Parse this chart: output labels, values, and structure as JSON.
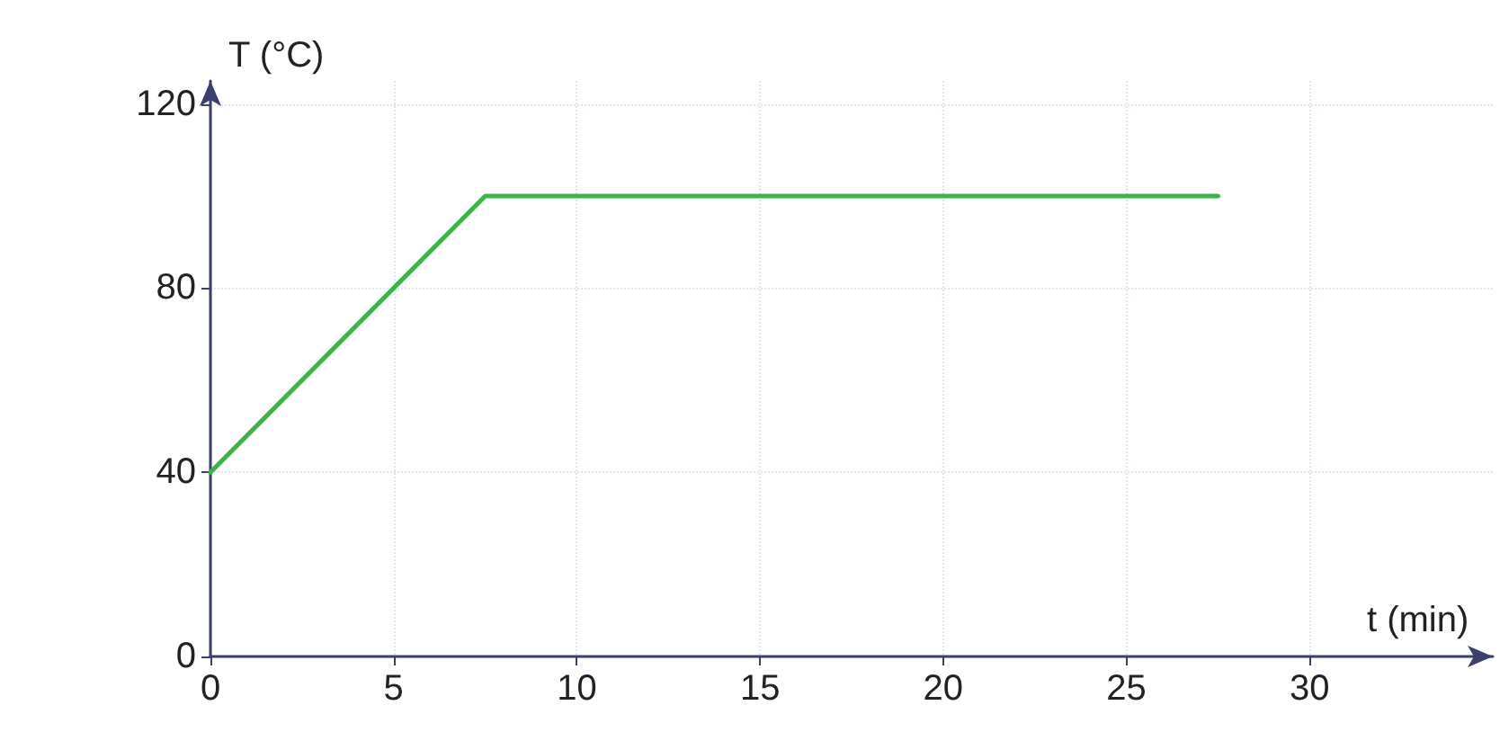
{
  "chart_data": {
    "type": "line",
    "xlabel": "t (min)",
    "ylabel": "T (°C)",
    "x": [
      0,
      7.5,
      27.5
    ],
    "series": [
      {
        "color": "#3cb44a",
        "values": [
          40,
          100,
          100
        ]
      }
    ],
    "xlim": [
      0,
      35
    ],
    "ylim": [
      0,
      125
    ],
    "xticks": [
      0,
      5,
      10,
      15,
      20,
      25,
      30
    ],
    "yticks": [
      0,
      40,
      80,
      120
    ],
    "grid": true,
    "marker": "none",
    "line_style": "solid"
  }
}
